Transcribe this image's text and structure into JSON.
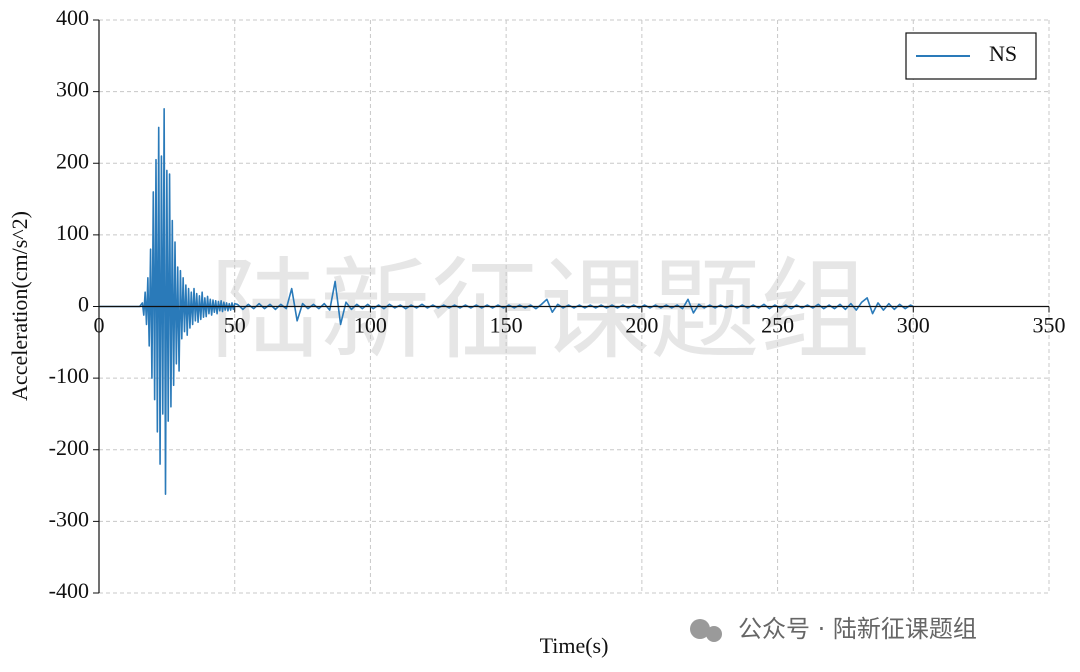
{
  "chart_data": {
    "type": "line",
    "xlabel": "Time(s)",
    "ylabel": "Acceleration(cm/s^2)",
    "watermark": "陆新征课题组",
    "source": "公众号 · 陆新征课题组",
    "xlim": [
      0,
      350
    ],
    "xticks": [
      0,
      50,
      100,
      150,
      200,
      250,
      300,
      350
    ],
    "ylim": [
      -400,
      400
    ],
    "yticks": [
      -400,
      -300,
      -200,
      -100,
      0,
      100,
      200,
      300,
      400
    ],
    "grid": true,
    "legend": "upper right",
    "x": [
      0,
      15,
      16,
      16.5,
      17,
      17.5,
      18,
      18.5,
      19,
      19.5,
      20,
      20.5,
      21,
      21.5,
      22,
      22.5,
      23,
      23.5,
      24,
      24.5,
      25,
      25.5,
      26,
      26.5,
      27,
      27.5,
      28,
      28.5,
      29,
      29.5,
      30,
      30.5,
      31,
      31.5,
      32,
      32.5,
      33,
      33.5,
      34,
      34.5,
      35,
      35.5,
      36,
      36.5,
      37,
      37.5,
      38,
      38.5,
      39,
      39.5,
      40,
      40.5,
      41,
      41.5,
      42,
      42.5,
      43,
      43.5,
      44,
      44.5,
      45,
      45.5,
      46,
      46.5,
      47,
      47.5,
      48,
      48.5,
      49,
      49.5,
      50,
      51,
      53,
      55,
      57,
      59,
      61,
      63,
      65,
      67,
      69,
      71,
      73,
      75,
      77,
      79,
      81,
      83,
      85,
      87,
      89,
      91,
      93,
      95,
      97,
      99,
      101,
      103,
      105,
      107,
      109,
      111,
      113,
      115,
      117,
      119,
      121,
      123,
      125,
      127,
      129,
      131,
      133,
      135,
      137,
      139,
      141,
      143,
      145,
      147,
      149,
      151,
      153,
      155,
      157,
      159,
      161,
      163,
      165,
      167,
      169,
      171,
      173,
      175,
      177,
      179,
      181,
      183,
      185,
      187,
      189,
      191,
      193,
      195,
      197,
      199,
      201,
      203,
      205,
      207,
      209,
      211,
      213,
      215,
      217,
      219,
      221,
      223,
      225,
      227,
      229,
      231,
      233,
      235,
      237,
      239,
      241,
      243,
      245,
      247,
      249,
      251,
      253,
      255,
      257,
      259,
      261,
      263,
      265,
      267,
      269,
      271,
      273,
      275,
      277,
      279,
      281,
      283,
      285,
      287,
      289,
      291,
      293,
      295,
      297,
      299,
      300
    ],
    "series": [
      {
        "name": "NS",
        "color": "#2a7ab9",
        "values": [
          0,
          0,
          5,
          -12,
          20,
          -25,
          40,
          -55,
          80,
          -100,
          160,
          -130,
          205,
          -175,
          250,
          -220,
          210,
          -150,
          276,
          -262,
          190,
          -160,
          185,
          -140,
          120,
          -110,
          90,
          -80,
          55,
          -90,
          50,
          -45,
          40,
          -35,
          30,
          -40,
          25,
          -30,
          20,
          -25,
          25,
          -20,
          18,
          -22,
          15,
          -18,
          20,
          -15,
          12,
          -14,
          14,
          -10,
          10,
          -12,
          9,
          -8,
          8,
          -10,
          7,
          -6,
          8,
          -7,
          6,
          -5,
          5,
          -6,
          4,
          -5,
          5,
          -4,
          4,
          3,
          -4,
          3,
          -3,
          4,
          -3,
          3,
          -4,
          3,
          -3,
          25,
          -20,
          4,
          -3,
          3,
          -3,
          4,
          -5,
          35,
          -25,
          6,
          -4,
          3,
          -3,
          3,
          -3,
          2,
          -3,
          3,
          -2,
          2,
          -3,
          2,
          -2,
          3,
          -2,
          2,
          -2,
          2,
          -2,
          2,
          -2,
          2,
          -2,
          2,
          -2,
          2,
          -2,
          2,
          -2,
          2,
          -2,
          2,
          -2,
          2,
          -3,
          3,
          10,
          -8,
          3,
          -2,
          2,
          -2,
          2,
          -2,
          2,
          -2,
          2,
          -2,
          2,
          -2,
          2,
          -2,
          2,
          -2,
          2,
          -2,
          2,
          -2,
          2,
          -2,
          2,
          -3,
          10,
          -9,
          3,
          -2,
          2,
          -2,
          2,
          -2,
          2,
          -2,
          2,
          -2,
          2,
          -2,
          3,
          -3,
          2,
          -2,
          2,
          -3,
          2,
          -2,
          2,
          -2,
          3,
          -3,
          2,
          -3,
          3,
          -4,
          4,
          -5,
          6,
          12,
          -10,
          5,
          -5,
          4,
          -4,
          3,
          -3,
          2,
          0
        ]
      }
    ]
  }
}
